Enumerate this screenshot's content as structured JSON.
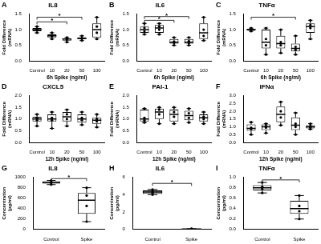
{
  "chart_data": [
    {
      "type": "box",
      "panel": "A",
      "title": "IL8",
      "y_label": [
        "Fold Difference",
        "(mRNA)"
      ],
      "x_label": "6h Spike (ng/ml)",
      "categories": [
        "Control",
        "10",
        "20",
        "50",
        "100"
      ],
      "color": "#000000",
      "grid": false,
      "boxes": [
        {
          "min": 0.9,
          "q1": 0.95,
          "median": 1.0,
          "q3": 1.05,
          "max": 1.1,
          "points": [
            0.9,
            0.98,
            1.02,
            1.1
          ]
        },
        {
          "min": 0.7,
          "q1": 0.75,
          "median": 0.8,
          "q3": 0.85,
          "max": 0.9,
          "points": [
            0.7,
            0.78,
            0.82,
            0.9
          ]
        },
        {
          "min": 0.6,
          "q1": 0.65,
          "median": 0.7,
          "q3": 0.72,
          "max": 0.75,
          "points": [
            0.6,
            0.68,
            0.71,
            0.75
          ]
        },
        {
          "min": 0.65,
          "q1": 0.7,
          "median": 0.72,
          "q3": 0.75,
          "max": 0.8,
          "points": [
            0.65,
            0.71,
            0.73,
            0.8
          ]
        },
        {
          "min": 0.7,
          "q1": 0.75,
          "median": 1.0,
          "q3": 1.2,
          "max": 1.4,
          "points": [
            0.7,
            0.9,
            1.1,
            1.4
          ]
        }
      ],
      "ylim": [
        0,
        1.5
      ],
      "yticks": [
        {
          "value": 0,
          "label": "0.0"
        },
        0.5,
        {
          "value": 1,
          "label": "1.0"
        },
        1.5
      ],
      "significance": [
        {
          "from": "Control",
          "to": "20",
          "y": 1.25,
          "label": "*"
        },
        {
          "from": "Control",
          "to": "50",
          "y": 1.4,
          "label": "*"
        }
      ]
    },
    {
      "type": "box",
      "panel": "B",
      "title": "IL6",
      "y_label": [
        "Fold Difference",
        "(mRNA)"
      ],
      "x_label": "6h Spike (ng/ml)",
      "categories": [
        "Control",
        "10",
        "20",
        "50",
        "100"
      ],
      "color": "#000000",
      "grid": false,
      "boxes": [
        {
          "min": 0.85,
          "q1": 0.9,
          "median": 1.0,
          "q3": 1.1,
          "max": 1.2,
          "points": [
            0.85,
            0.95,
            1.05,
            1.2
          ]
        },
        {
          "min": 0.85,
          "q1": 0.9,
          "median": 1.05,
          "q3": 1.15,
          "max": 1.2,
          "points": [
            0.85,
            1.0,
            1.1,
            1.2
          ]
        },
        {
          "min": 0.5,
          "q1": 0.55,
          "median": 0.6,
          "q3": 0.7,
          "max": 0.75,
          "points": [
            0.5,
            0.58,
            0.62,
            0.75
          ]
        },
        {
          "min": 0.5,
          "q1": 0.55,
          "median": 0.6,
          "q3": 0.7,
          "max": 0.75,
          "points": [
            0.5,
            0.57,
            0.63,
            0.75
          ]
        },
        {
          "min": 0.65,
          "q1": 0.7,
          "median": 0.9,
          "q3": 1.2,
          "max": 1.4,
          "points": [
            0.65,
            0.8,
            1.0,
            1.4
          ]
        }
      ],
      "ylim": [
        0,
        1.5
      ],
      "yticks": [
        {
          "value": 0,
          "label": "0.0"
        },
        0.5,
        {
          "value": 1,
          "label": "1.0"
        },
        1.5
      ],
      "significance": [
        {
          "from": "Control",
          "to": "20",
          "y": 1.3,
          "label": "*"
        },
        {
          "from": "Control",
          "to": "50",
          "y": 1.42,
          "label": "*"
        }
      ]
    },
    {
      "type": "box",
      "panel": "C",
      "title": "TNFα",
      "y_label": [
        "Fold Difference",
        "(mRNA)"
      ],
      "x_label": "6h Spike (ng/ml)",
      "categories": [
        "Control",
        "10",
        "20",
        "50",
        "100"
      ],
      "color": "#000000",
      "grid": false,
      "boxes": [
        {
          "min": 0.95,
          "q1": 0.97,
          "median": 1.0,
          "q3": 1.02,
          "max": 1.05,
          "points": [
            0.95,
            0.99,
            1.01,
            1.05
          ]
        },
        {
          "min": 0.2,
          "q1": 0.4,
          "median": 0.6,
          "q3": 1.0,
          "max": 1.05,
          "points": [
            0.2,
            0.5,
            0.7,
            1.05
          ]
        },
        {
          "min": 0.25,
          "q1": 0.4,
          "median": 0.55,
          "q3": 0.8,
          "max": 1.0,
          "points": [
            0.25,
            0.5,
            0.6,
            1.0
          ]
        },
        {
          "min": 0.2,
          "q1": 0.3,
          "median": 0.4,
          "q3": 0.55,
          "max": 0.8,
          "points": [
            0.2,
            0.35,
            0.45,
            0.8
          ]
        },
        {
          "min": 0.7,
          "q1": 0.9,
          "median": 1.1,
          "q3": 1.2,
          "max": 1.3,
          "points": [
            0.7,
            1.05,
            1.15,
            1.3
          ]
        }
      ],
      "ylim": [
        0,
        1.5
      ],
      "yticks": [
        {
          "value": 0,
          "label": "0.0"
        },
        0.5,
        {
          "value": 1,
          "label": "1.0"
        },
        1.5
      ],
      "significance": [
        {
          "from": "Control",
          "to": "50",
          "y": 1.4,
          "label": "*"
        }
      ]
    },
    {
      "type": "box",
      "panel": "D",
      "title": "CXCL5",
      "y_label": [
        "Fold Difference",
        "(mRNA)"
      ],
      "x_label": "12h Spike (ng/ml)",
      "categories": [
        "Control",
        "10",
        "20",
        "50",
        "100"
      ],
      "color": "#000000",
      "grid": false,
      "boxes": [
        {
          "min": 0.7,
          "q1": 0.9,
          "median": 1.0,
          "q3": 1.1,
          "max": 1.2,
          "points": [
            0.7,
            0.95,
            1.05,
            1.2
          ]
        },
        {
          "min": 0.6,
          "q1": 0.9,
          "median": 1.0,
          "q3": 1.2,
          "max": 1.3,
          "points": [
            0.6,
            0.95,
            1.05,
            1.3
          ]
        },
        {
          "min": 0.7,
          "q1": 0.9,
          "median": 1.1,
          "q3": 1.3,
          "max": 1.4,
          "points": [
            0.7,
            1.0,
            1.2,
            1.4
          ]
        },
        {
          "min": 0.75,
          "q1": 0.85,
          "median": 1.0,
          "q3": 1.2,
          "max": 1.3,
          "points": [
            0.75,
            0.95,
            1.05,
            1.3
          ]
        },
        {
          "min": 0.65,
          "q1": 0.8,
          "median": 0.95,
          "q3": 1.05,
          "max": 1.2,
          "points": [
            0.65,
            0.9,
            1.0,
            1.2
          ]
        }
      ],
      "ylim": [
        0,
        2
      ],
      "yticks": [
        {
          "value": 0,
          "label": "0.0"
        },
        0.5,
        {
          "value": 1,
          "label": "1.0"
        },
        1.5,
        {
          "value": 2,
          "label": "2.0"
        }
      ],
      "significance": []
    },
    {
      "type": "box",
      "panel": "E",
      "title": "PAI-1",
      "y_label": [
        "Fold Difference",
        "(mRNA)"
      ],
      "x_label": "12h Spike (ng/ml)",
      "categories": [
        "Control",
        "10",
        "20",
        "50",
        "100"
      ],
      "color": "#000000",
      "grid": false,
      "boxes": [
        {
          "min": 0.85,
          "q1": 0.9,
          "median": 1.0,
          "q3": 1.4,
          "max": 1.45,
          "points": [
            0.85,
            0.95,
            1.05,
            1.45
          ]
        },
        {
          "min": 0.8,
          "q1": 1.0,
          "median": 1.3,
          "q3": 1.45,
          "max": 1.5,
          "points": [
            0.8,
            1.2,
            1.4,
            1.5
          ]
        },
        {
          "min": 0.8,
          "q1": 0.9,
          "median": 1.2,
          "q3": 1.4,
          "max": 1.5,
          "points": [
            0.8,
            1.1,
            1.3,
            1.5
          ]
        },
        {
          "min": 0.85,
          "q1": 0.95,
          "median": 1.15,
          "q3": 1.35,
          "max": 1.45,
          "points": [
            0.85,
            1.05,
            1.25,
            1.45
          ]
        },
        {
          "min": 0.8,
          "q1": 0.9,
          "median": 1.05,
          "q3": 1.2,
          "max": 1.3,
          "points": [
            0.8,
            1.0,
            1.1,
            1.3
          ]
        }
      ],
      "ylim": [
        0,
        2
      ],
      "yticks": [
        {
          "value": 0,
          "label": "0.0"
        },
        0.5,
        {
          "value": 1,
          "label": "1.0"
        },
        1.5,
        {
          "value": 2,
          "label": "2.0"
        }
      ],
      "significance": []
    },
    {
      "type": "box",
      "panel": "F",
      "title": "IFNα",
      "y_label": [
        "Fold Difference",
        "(mRNA)"
      ],
      "x_label": "12h Spike (ng/ml)",
      "categories": [
        "Control",
        "10",
        "20",
        "50",
        "100"
      ],
      "color": "#000000",
      "grid": false,
      "boxes": [
        {
          "min": 0.5,
          "q1": 0.75,
          "median": 0.9,
          "q3": 1.15,
          "max": 1.3,
          "points": [
            0.5,
            0.85,
            0.95,
            1.3
          ]
        },
        {
          "min": 0.6,
          "q1": 0.8,
          "median": 1.0,
          "q3": 1.15,
          "max": 1.2,
          "points": [
            0.6,
            0.95,
            1.05,
            1.2
          ]
        },
        {
          "min": 1.1,
          "q1": 1.3,
          "median": 1.8,
          "q3": 2.3,
          "max": 2.6,
          "points": [
            1.1,
            1.6,
            2.0,
            2.6
          ]
        },
        {
          "min": 0.5,
          "q1": 0.8,
          "median": 1.1,
          "q3": 1.6,
          "max": 1.9,
          "points": [
            0.5,
            1.0,
            1.2,
            1.9
          ]
        },
        {
          "min": 0.85,
          "q1": 0.9,
          "median": 1.0,
          "q3": 1.1,
          "max": 1.2,
          "points": [
            0.85,
            0.95,
            1.05,
            1.2
          ]
        }
      ],
      "ylim": [
        0,
        3
      ],
      "yticks": [
        {
          "value": 0,
          "label": "0.0"
        },
        0.5,
        {
          "value": 1,
          "label": "1.0"
        },
        1.5,
        {
          "value": 2,
          "label": "2.0"
        },
        2.5,
        {
          "value": 3,
          "label": "3.0"
        }
      ],
      "significance": []
    },
    {
      "type": "box",
      "panel": "G",
      "title": "IL8",
      "y_label": [
        "Concentration",
        "(pg/ml)"
      ],
      "categories": [
        "Control",
        "Spike"
      ],
      "color": "#000000",
      "grid": false,
      "boxes": [
        {
          "min": 860,
          "q1": 880,
          "median": 900,
          "q3": 920,
          "max": 940,
          "points": [
            860,
            890,
            910,
            940
          ]
        },
        {
          "min": 150,
          "q1": 300,
          "median": 560,
          "q3": 700,
          "max": 800,
          "points": [
            150,
            450,
            650,
            800
          ]
        }
      ],
      "ylim": [
        0,
        1000
      ],
      "yticks": [
        0,
        200,
        400,
        600,
        800,
        1000
      ],
      "significance": [
        {
          "from": "Control",
          "to": "Spike",
          "y": 975,
          "label": "*"
        }
      ]
    },
    {
      "type": "box",
      "panel": "H",
      "title": "IL6",
      "y_label": [
        "Concentration",
        "(pg/ml)"
      ],
      "categories": [
        "Control",
        "Spike"
      ],
      "color": "#000000",
      "grid": false,
      "boxes": [
        {
          "min": 4.0,
          "q1": 4.1,
          "median": 4.3,
          "q3": 4.5,
          "max": 4.6,
          "points": [
            4.0,
            4.2,
            4.4,
            4.6
          ]
        },
        {
          "min": 0.02,
          "q1": 0.03,
          "median": 0.05,
          "q3": 0.07,
          "max": 0.08,
          "points": [
            0.02,
            0.04,
            0.06,
            0.08
          ]
        }
      ],
      "ylim": [
        0,
        6
      ],
      "yticks": [
        0,
        2,
        4,
        6
      ],
      "significance": [
        {
          "from": "Control",
          "to": "Spike",
          "y": 5.3,
          "label": "*"
        }
      ]
    },
    {
      "type": "box",
      "panel": "I",
      "title": "TNFα",
      "y_label": [
        "Concentration",
        "(pg/ml)"
      ],
      "categories": [
        "Control",
        "Spike"
      ],
      "color": "#000000",
      "grid": false,
      "boxes": [
        {
          "min": 0.7,
          "q1": 0.75,
          "median": 0.8,
          "q3": 0.85,
          "max": 0.9,
          "points": [
            0.7,
            0.78,
            0.82,
            0.9
          ]
        },
        {
          "min": 0.2,
          "q1": 0.3,
          "median": 0.4,
          "q3": 0.55,
          "max": 0.65,
          "points": [
            0.2,
            0.35,
            0.45,
            0.65
          ]
        }
      ],
      "ylim": [
        0,
        1
      ],
      "yticks": [
        {
          "value": 0,
          "label": "0.0"
        },
        0.2,
        0.4,
        0.6,
        0.8,
        {
          "value": 1,
          "label": "1.0"
        }
      ],
      "significance": [
        {
          "from": "Control",
          "to": "Spike",
          "y": 0.95,
          "label": "*"
        }
      ]
    }
  ]
}
